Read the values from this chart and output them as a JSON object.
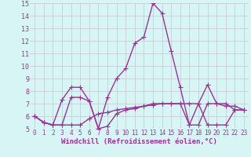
{
  "xlabel": "Windchill (Refroidissement éolien,°C)",
  "x": [
    0,
    1,
    2,
    3,
    4,
    5,
    6,
    7,
    8,
    9,
    10,
    11,
    12,
    13,
    14,
    15,
    16,
    17,
    18,
    19,
    20,
    21,
    22,
    23
  ],
  "line1": [
    6.0,
    5.5,
    5.3,
    7.3,
    8.3,
    8.3,
    7.2,
    5.0,
    7.5,
    9.0,
    9.8,
    11.8,
    12.3,
    15.0,
    14.2,
    11.2,
    8.3,
    5.3,
    7.0,
    8.5,
    7.0,
    7.0,
    6.5,
    6.5
  ],
  "line2": [
    6.0,
    5.5,
    5.3,
    5.3,
    7.5,
    7.5,
    7.2,
    5.0,
    5.2,
    6.2,
    6.5,
    6.6,
    6.8,
    7.0,
    7.0,
    7.0,
    7.0,
    5.3,
    5.3,
    7.0,
    7.0,
    6.8,
    6.8,
    6.5
  ],
  "line3": [
    6.0,
    5.5,
    5.3,
    5.3,
    5.3,
    5.3,
    5.8,
    6.2,
    6.3,
    6.5,
    6.6,
    6.7,
    6.8,
    6.9,
    7.0,
    7.0,
    7.0,
    7.0,
    7.0,
    5.3,
    5.3,
    5.3,
    6.5,
    6.5
  ],
  "line_color": "#993399",
  "bg_color": "#d8f5f5",
  "grid_color": "#c0c8d0",
  "ylim": [
    5,
    15
  ],
  "yticks": [
    5,
    6,
    7,
    8,
    9,
    10,
    11,
    12,
    13,
    14,
    15
  ],
  "xticks": [
    0,
    1,
    2,
    3,
    4,
    5,
    6,
    7,
    8,
    9,
    10,
    11,
    12,
    13,
    14,
    15,
    16,
    17,
    18,
    19,
    20,
    21,
    22,
    23
  ],
  "marker": "+",
  "markersize": 4,
  "linewidth": 1.0,
  "xlabel_fontsize": 6.5,
  "tick_fontsize": 6,
  "axis_bg": "#d8f5f5"
}
